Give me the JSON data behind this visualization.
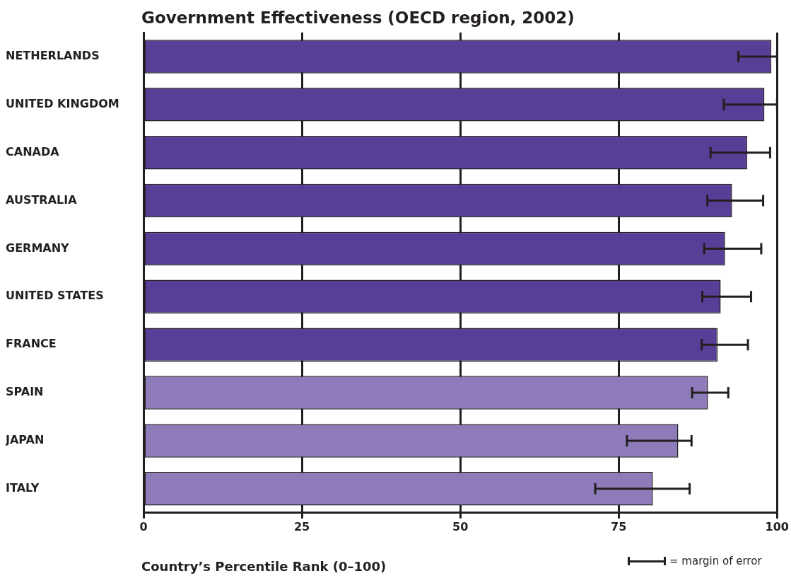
{
  "chart_data": {
    "type": "bar",
    "orientation": "horizontal",
    "title": "Government Effectiveness (OECD region, 2002)",
    "xlabel": "Country’s Percentile Rank (0–100)",
    "categories": [
      "NETHERLANDS",
      "UNITED KINGDOM",
      "CANADA",
      "AUSTRALIA",
      "GERMANY",
      "UNITED STATES",
      "FRANCE",
      "SPAIN",
      "JAPAN",
      "ITALY"
    ],
    "values": [
      99.1,
      98.0,
      95.3,
      92.9,
      91.8,
      91.1,
      90.6,
      89.1,
      84.4,
      80.4
    ],
    "colors": [
      "#573e96",
      "#573e96",
      "#573e96",
      "#573e96",
      "#573e96",
      "#573e96",
      "#573e96",
      "#8e7cba",
      "#8e7cba",
      "#8e7cba"
    ],
    "errors": [
      [
        93.9,
        100
      ],
      [
        91.6,
        100
      ],
      [
        89.5,
        98.9
      ],
      [
        89.0,
        97.8
      ],
      [
        88.5,
        97.5
      ],
      [
        88.2,
        95.9
      ],
      [
        88.1,
        95.4
      ],
      [
        86.6,
        92.3
      ],
      [
        76.3,
        86.5
      ],
      [
        71.3,
        86.2
      ]
    ],
    "xlim": [
      0,
      100
    ],
    "xticks": [
      0,
      25,
      50,
      75,
      100
    ],
    "grid": "x",
    "legend": false,
    "annotations": [
      "= margin of error"
    ]
  }
}
